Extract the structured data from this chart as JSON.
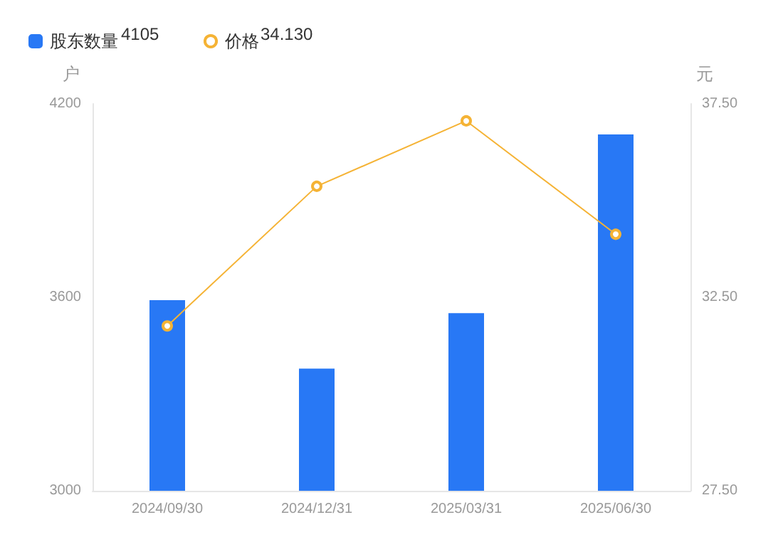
{
  "chart_data": {
    "type": "bar",
    "categories": [
      "2024/09/30",
      "2024/12/31",
      "2025/03/31",
      "2025/06/30"
    ],
    "series": [
      {
        "name": "股东数量",
        "color": "#2878f5",
        "values": [
          3591,
          3379,
          3551,
          4105
        ]
      },
      {
        "name": "价格",
        "type": "line",
        "axis": "y2",
        "color": "#f5b335",
        "values": [
          31.76,
          35.37,
          37.06,
          34.13
        ]
      }
    ],
    "ylabel": "户",
    "y2label": "元",
    "ylim": [
      3000,
      4200
    ],
    "yticks": [
      3000,
      3600,
      4200
    ],
    "y2lim": [
      27.5,
      37.5
    ],
    "y2ticks": [
      {
        "value": 27.5,
        "label": "27.50"
      },
      {
        "value": 32.5,
        "label": "32.50"
      },
      {
        "value": 37.5,
        "label": "37.50"
      }
    ],
    "annotations": [
      "4105",
      "34.130"
    ],
    "legend": "top left",
    "grid": false,
    "marker": "circle"
  }
}
